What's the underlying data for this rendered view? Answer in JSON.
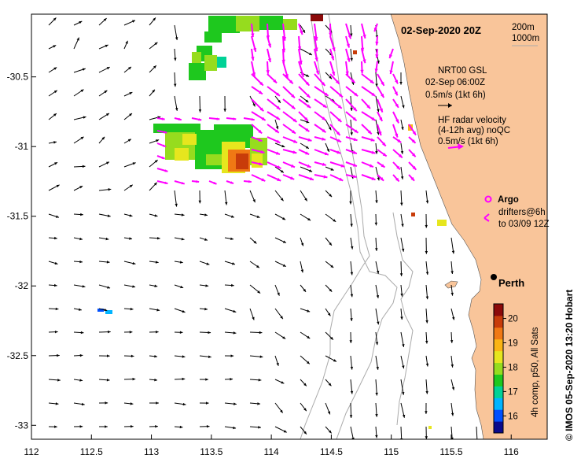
{
  "map": {
    "title": "02-Sep-2020 20Z",
    "depth_labels": [
      "200m",
      "1000m"
    ],
    "lon_ticks": [
      "112",
      "112.5",
      "113",
      "113.5",
      "114",
      "114.5",
      "115",
      "115.5",
      "116"
    ],
    "lat_ticks": [
      "-30.5",
      "-31",
      "-31.5",
      "-32",
      "-32.5",
      "-33"
    ],
    "lon_range": [
      112,
      116.3
    ],
    "lat_range": [
      -33.1,
      -30.05
    ],
    "city": "Perth",
    "credit": "©  IMOS 05-Sep-2020 13:20 Hobart",
    "land_color": "#f9c59a",
    "current_arrow_color": "#000000",
    "radar_arrow_color": "#ff00ff"
  },
  "legend": {
    "gsl_lines": [
      "NRT00 GSL",
      "02-Sep 06:00Z",
      "0.5m/s (1kt 6h)"
    ],
    "radar_lines": [
      "HF radar velocity",
      "(4-12h avg) noQC",
      "0.5m/s (1kt 6h)"
    ],
    "argo_label": "Argo",
    "drifter_lines": [
      "drifters@6h",
      "to 03/09 12Z"
    ]
  },
  "colorbar": {
    "ticks": [
      "16",
      "17",
      "18",
      "19",
      "20"
    ],
    "range": [
      15.3,
      20.6
    ],
    "label": "4h comp, p50, All Sats",
    "colors": [
      "#0a0a8c",
      "#0050ff",
      "#00b4ff",
      "#00d296",
      "#1ec81e",
      "#96dc1e",
      "#e6e61e",
      "#fab414",
      "#f07814",
      "#c83c0a",
      "#8c0a0a"
    ]
  }
}
